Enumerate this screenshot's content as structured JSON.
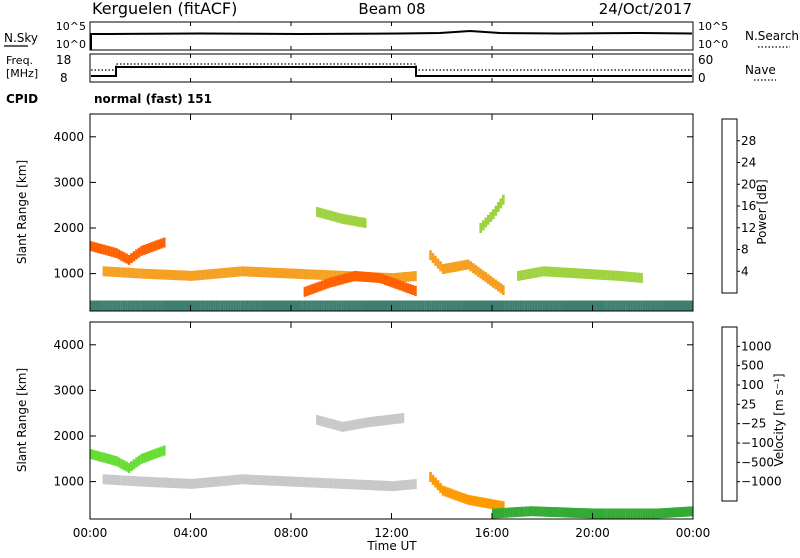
{
  "header": {
    "title_left": "Kerguelen (fitACF)",
    "title_center": "Beam 08",
    "title_right": "24/Oct/2017"
  },
  "sky_panel": {
    "left_label": "N.Sky",
    "left_ticks": [
      "10^5",
      "10^0"
    ],
    "right_label": "N.Search",
    "right_ticks": [
      "10^5",
      "10^0"
    ]
  },
  "freq_panel": {
    "left_label_line1": "Freq.",
    "left_label_line2": "[MHz]",
    "left_ticks": [
      "18",
      "8"
    ],
    "right_label": "Nave",
    "right_ticks": [
      "60",
      "0"
    ]
  },
  "cpid": {
    "label": "CPID",
    "value": "normal (fast) 151"
  },
  "colors": {
    "power": [
      "#0000e6",
      "#1f3fa8",
      "#3f7f6f",
      "#3fa55a",
      "#9fd23f",
      "#f0e020",
      "#f5a020",
      "#ff6000",
      "#ff0000"
    ],
    "velocity": [
      "#e00000",
      "#ff6000",
      "#ff9900",
      "#ffcc66",
      "#c8c8c8",
      "#66dd33",
      "#33aa33",
      "#2f8f8f",
      "#2040c0"
    ]
  },
  "chart_data": [
    {
      "type": "heatmap",
      "name": "power",
      "ylabel": "Slant Range [km]",
      "ylim": [
        180,
        4500
      ],
      "yticks": [
        "4000",
        "3000",
        "2000",
        "1000"
      ],
      "colorbar_label": "Power [dB]",
      "colorbar_ticks": [
        "28",
        "24",
        "20",
        "16",
        "12",
        "8",
        "4"
      ],
      "series": [
        {
          "x": [
            0.0,
            1.0,
            1.5,
            2.0,
            3.0
          ],
          "y": [
            1600,
            1450,
            1300,
            1500,
            1700
          ],
          "value": 26
        },
        {
          "x": [
            0.5,
            2.0,
            4.0,
            6.0,
            8.0,
            10.0,
            12.0,
            13.0
          ],
          "y": [
            1050,
            1000,
            950,
            1050,
            1000,
            950,
            900,
            950
          ],
          "value": 22
        },
        {
          "x": [
            8.5,
            9.5,
            10.5,
            11.5,
            12.5,
            13.0
          ],
          "y": [
            600,
            800,
            950,
            900,
            700,
            600
          ],
          "value": 28
        },
        {
          "x": [
            9.0,
            10.0,
            11.0
          ],
          "y": [
            2350,
            2200,
            2100
          ],
          "value": 16
        },
        {
          "x": [
            13.5,
            14.0,
            15.0,
            16.0,
            16.5
          ],
          "y": [
            1400,
            1100,
            1200,
            800,
            600
          ],
          "value": 24
        },
        {
          "x": [
            15.5,
            16.0,
            16.5
          ],
          "y": [
            2000,
            2300,
            2700
          ],
          "value": 14
        },
        {
          "x": [
            17.0,
            18.0,
            19.5,
            21.0,
            22.0
          ],
          "y": [
            950,
            1050,
            1000,
            950,
            900
          ],
          "value": 16
        },
        {
          "x": [
            0.0,
            4.0,
            8.0,
            12.0,
            16.0,
            20.0,
            24.0
          ],
          "y": [
            300,
            300,
            300,
            300,
            300,
            300,
            300
          ],
          "value": 8
        }
      ],
      "xlabel": "Time UT",
      "xticks": [
        "00:00",
        "04:00",
        "08:00",
        "12:00",
        "16:00",
        "20:00",
        "00:00"
      ]
    },
    {
      "type": "heatmap",
      "name": "velocity",
      "ylabel": "Slant Range [km]",
      "ylim": [
        180,
        4500
      ],
      "yticks": [
        "4000",
        "3000",
        "2000",
        "1000"
      ],
      "colorbar_label": "Velocity [m s⁻¹]",
      "colorbar_ticks": [
        "1000",
        "500",
        "100",
        "25",
        "−25",
        "−100",
        "−500",
        "−1000"
      ],
      "series": [
        {
          "x": [
            0.0,
            1.0,
            1.5,
            2.0,
            3.0
          ],
          "y": [
            1600,
            1450,
            1300,
            1500,
            1700
          ],
          "value": 100
        },
        {
          "x": [
            0.5,
            2.0,
            4.0,
            6.0,
            8.0,
            10.0,
            12.0,
            13.0
          ],
          "y": [
            1050,
            1000,
            950,
            1050,
            1000,
            950,
            900,
            950
          ],
          "value": 0
        },
        {
          "x": [
            13.5,
            14.0,
            15.0,
            16.0,
            16.5
          ],
          "y": [
            1100,
            800,
            600,
            500,
            450
          ],
          "value": -300
        },
        {
          "x": [
            9.0,
            10.0,
            11.0,
            12.5
          ],
          "y": [
            2350,
            2200,
            2300,
            2400
          ],
          "value": 0
        },
        {
          "x": [
            16.0,
            17.5,
            20.0,
            22.5,
            24.0
          ],
          "y": [
            300,
            350,
            300,
            300,
            350
          ],
          "value": 150
        }
      ],
      "xlabel": "Time UT",
      "xticks": [
        "00:00",
        "04:00",
        "08:00",
        "12:00",
        "16:00",
        "20:00",
        "00:00"
      ]
    }
  ]
}
